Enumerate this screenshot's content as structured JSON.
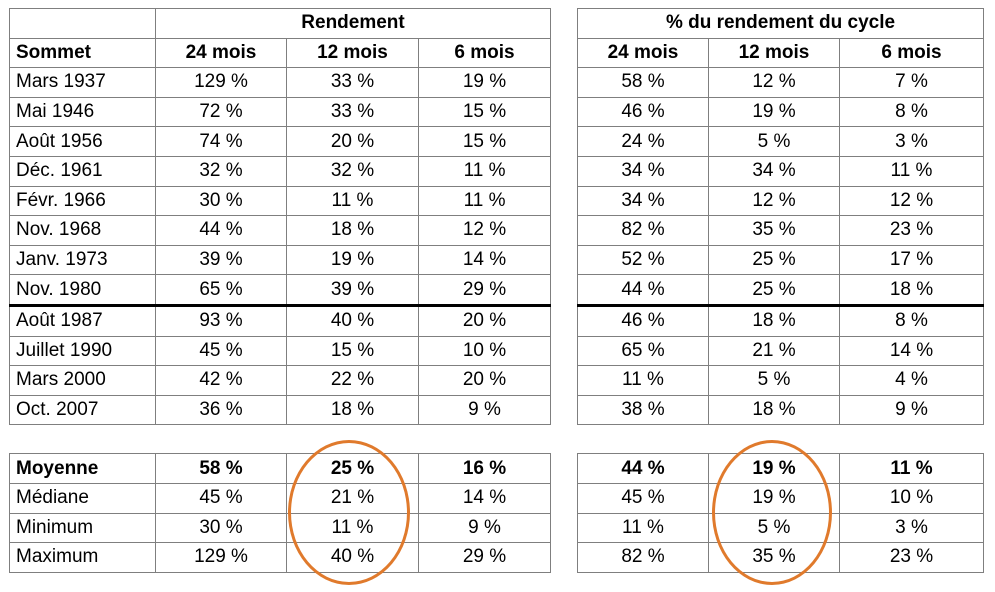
{
  "left": {
    "group_header": "Rendement",
    "corner_header": "Sommet",
    "columns": [
      "24 mois",
      "12 mois",
      "6 mois"
    ]
  },
  "right": {
    "group_header": "% du rendement du cycle",
    "columns": [
      "24 mois",
      "12 mois",
      "6 mois"
    ]
  },
  "rows": [
    {
      "label": "Mars 1937",
      "rend": [
        "129 %",
        "33 %",
        "19 %"
      ],
      "pct": [
        "58 %",
        "12 %",
        "7 %"
      ]
    },
    {
      "label": "Mai 1946",
      "rend": [
        "72 %",
        "33 %",
        "15 %"
      ],
      "pct": [
        "46 %",
        "19 %",
        "8 %"
      ]
    },
    {
      "label": "Août 1956",
      "rend": [
        "74 %",
        "20 %",
        "15 %"
      ],
      "pct": [
        "24 %",
        "5 %",
        "3 %"
      ]
    },
    {
      "label": "Déc. 1961",
      "rend": [
        "32 %",
        "32 %",
        "11 %"
      ],
      "pct": [
        "34 %",
        "34 %",
        "11 %"
      ]
    },
    {
      "label": "Févr. 1966",
      "rend": [
        "30 %",
        "11 %",
        "11 %"
      ],
      "pct": [
        "34 %",
        "12 %",
        "12 %"
      ]
    },
    {
      "label": "Nov. 1968",
      "rend": [
        "44 %",
        "18 %",
        "12 %"
      ],
      "pct": [
        "82 %",
        "35 %",
        "23 %"
      ]
    },
    {
      "label": "Janv. 1973",
      "rend": [
        "39 %",
        "19 %",
        "14 %"
      ],
      "pct": [
        "52 %",
        "25 %",
        "17 %"
      ]
    },
    {
      "label": "Nov. 1980",
      "rend": [
        "65 %",
        "39 %",
        "29 %"
      ],
      "pct": [
        "44 %",
        "25 %",
        "18 %"
      ]
    },
    {
      "label": "Août 1987",
      "rend": [
        "93 %",
        "40 %",
        "20 %"
      ],
      "pct": [
        "46 %",
        "18 %",
        "8 %"
      ]
    },
    {
      "label": "Juillet 1990",
      "rend": [
        "45 %",
        "15 %",
        "10 %"
      ],
      "pct": [
        "65 %",
        "21 %",
        "14 %"
      ]
    },
    {
      "label": "Mars 2000",
      "rend": [
        "42 %",
        "22 %",
        "20 %"
      ],
      "pct": [
        "11 %",
        "5 %",
        "4 %"
      ]
    },
    {
      "label": "Oct. 2007",
      "rend": [
        "36 %",
        "18 %",
        "9 %"
      ],
      "pct": [
        "38 %",
        "18 %",
        "9 %"
      ]
    }
  ],
  "stats": [
    {
      "label": "Moyenne",
      "bold": true,
      "rend": [
        "58 %",
        "25 %",
        "16 %"
      ],
      "pct": [
        "44 %",
        "19 %",
        "11 %"
      ]
    },
    {
      "label": "Médiane",
      "rend": [
        "45 %",
        "21 %",
        "14 %"
      ],
      "pct": [
        "45 %",
        "19 %",
        "10 %"
      ]
    },
    {
      "label": "Minimum",
      "rend": [
        "30 %",
        "11 %",
        "9 %"
      ],
      "pct": [
        "11 %",
        "5 %",
        "3 %"
      ]
    },
    {
      "label": "Maximum",
      "rend": [
        "129 %",
        "40 %",
        "29 %"
      ],
      "pct": [
        "82 %",
        "35 %",
        "23 %"
      ]
    }
  ],
  "highlight_color": "#e07a2c"
}
